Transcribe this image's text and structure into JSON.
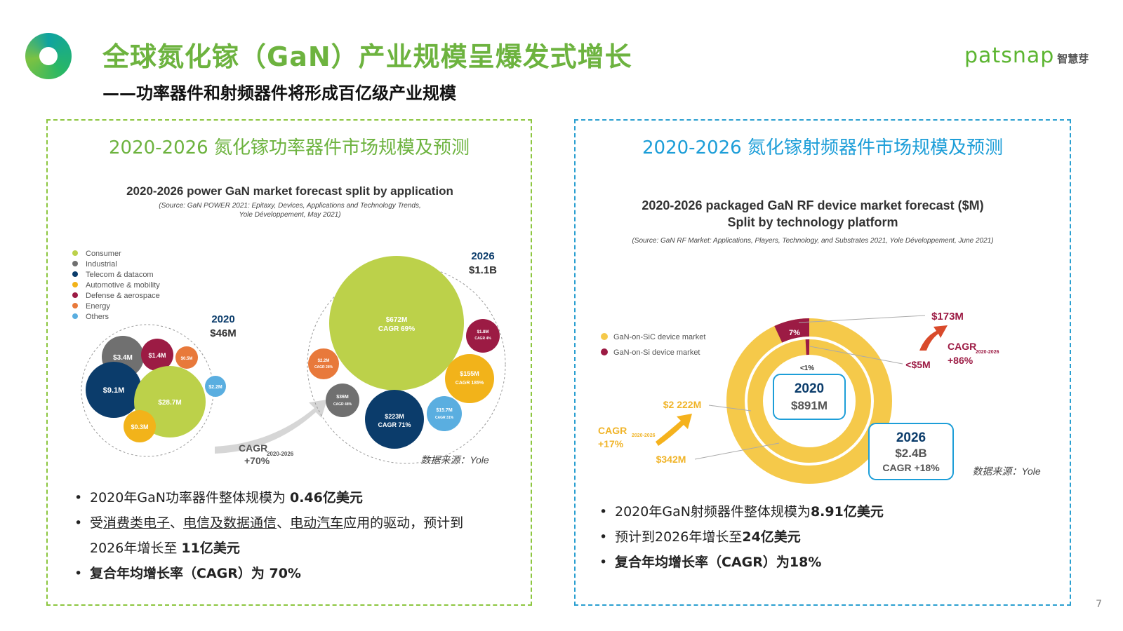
{
  "header": {
    "title": "全球氮化镓（GaN）产业规模呈爆发式增长",
    "subtitle": "——功率器件和射频器件将形成百亿级产业规模",
    "brand_en": "patsnap",
    "brand_cn": "智慧芽"
  },
  "left": {
    "panel_title": "2020-2026 氮化镓功率器件市场规模及预测",
    "figure": {
      "title": "2020-2026 power GaN market forecast split by application",
      "source_line1": "(Source: GaN POWER 2021: Epitaxy, Devices, Applications and Technology Trends,",
      "source_line2": "Yole Développement, May 2021)",
      "legend": [
        "Consumer",
        "Industrial",
        "Telecom & datacom",
        "Automotive & mobility",
        "Defense & aerospace",
        "Energy",
        "Others"
      ],
      "year_2020": "2020",
      "total_2020": "$46M",
      "year_2026": "2026",
      "total_2026": "$1.1B",
      "bubbles_2020": [
        "$3.4M",
        "$1.4M",
        "$0.5M",
        "$9.1M",
        "$28.7M",
        "$2.2M",
        "$0.3M"
      ],
      "bubbles_2026": {
        "consumer": "$672M",
        "consumer_cagr": "CAGR 69%",
        "defense": "$1.8M",
        "defense_cagr": "CAGR 4%",
        "energy": "$2.2M",
        "energy_cagr": "CAGR 28%",
        "industrial": "$36M",
        "industrial_cagr": "CAGR 48%",
        "automotive": "$155M",
        "automotive_cagr": "CAGR 185%",
        "telecom": "$223M",
        "telecom_cagr": "CAGR 71%",
        "others": "$15.7M",
        "others_cagr": "CAGR 31%"
      },
      "cagr_label": "CAGR",
      "cagr_sub": "2020-2026",
      "cagr_value": "+70%",
      "data_source": "数据来源：Yole"
    },
    "bullets": {
      "b1_pre": "2020年GaN功率器件整体规模为 ",
      "b1_bold": "0.46亿美元",
      "b2_pre": "受",
      "b2_u1": "消费类电子",
      "b2_sep1": "、",
      "b2_u2": "电信及数据通信",
      "b2_sep2": "、",
      "b2_u3": "电动汽车",
      "b2_post": "应用的驱动，预计到",
      "b2_line2_pre": "2026年增长至 ",
      "b2_line2_bold": "11亿美元",
      "b3": "复合年均增长率（CAGR）为 70%"
    }
  },
  "right": {
    "panel_title": "2020-2026 氮化镓射频器件市场规模及预测",
    "figure": {
      "title_line1": "2020-2026 packaged GaN RF device market forecast ($M)",
      "title_line2": "Split by technology platform",
      "source": "(Source: GaN RF Market: Applications, Players, Technology, and Substrates 2021, Yole Développement, June 2021)",
      "legend": [
        "GaN-on-SiC device market",
        "GaN-on-Si device market"
      ],
      "year_2020": "2020",
      "total_2020": "$891M",
      "year_2026": "2026",
      "total_2026": "$2.4B",
      "cagr_total": "CAGR +18%",
      "label_173": "$173M",
      "label_5": "<$5M",
      "label_7pct": "7%",
      "label_1pct": "<1%",
      "label_2222": "$2 222M",
      "label_342": "$342M",
      "cagr_si": "CAGR",
      "cagr_si_sub": "2020-2026",
      "cagr_si_value": "+86%",
      "cagr_sic": "CAGR",
      "cagr_sic_sub": "2020-2026",
      "cagr_sic_value": "+17%",
      "data_source": "数据来源：Yole"
    },
    "bullets": {
      "b1_pre": "2020年GaN射频器件整体规模为",
      "b1_bold": "8.91亿美元",
      "b2_pre": "预计到2026年增长至",
      "b2_bold": "24亿美元",
      "b3": "复合年均增长率（CAGR）为18%"
    }
  },
  "page_number": "7",
  "colors": {
    "green": "#6db33f",
    "blue": "#1d9ed8",
    "consumer": "#bcd14a",
    "industrial": "#707070",
    "telecom": "#0b3c6b",
    "automotive": "#f2b31a",
    "defense": "#9c1b44",
    "energy": "#e8793b",
    "others": "#5aaee0",
    "sic": "#f5c94a",
    "si": "#9c1b44"
  }
}
